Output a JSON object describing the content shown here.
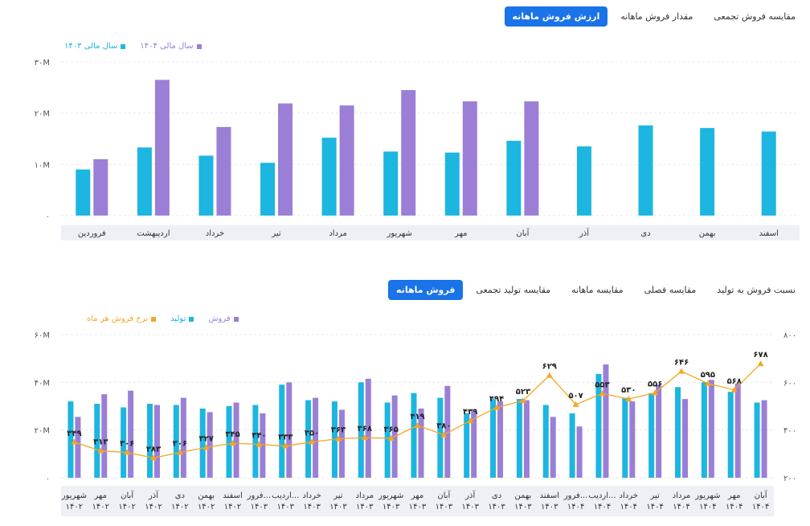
{
  "top_tabs": [
    "ارزش فروش ماهانه",
    "مقدار فروش ماهانه",
    "مقایسه فروش تجمعی"
  ],
  "bottom_tabs": [
    "فروش ماهانه",
    "مقایسه تولید تجمعی",
    "مقایسه ماهانه",
    "مقایسه فصلی",
    "نسبت فروش به تولید"
  ],
  "colors": {
    "cyan": "#1cb6e0",
    "purple": "#9b7fd6",
    "orange": "#f5a623",
    "accent": "#1a73e8"
  },
  "chart_data": [
    {
      "type": "bar",
      "categories": [
        "فروردین",
        "اردیبهشت",
        "خرداد",
        "تیر",
        "مرداد",
        "شهریور",
        "مهر",
        "آبان",
        "آذر",
        "دی",
        "بهمن",
        "اسفند"
      ],
      "series": [
        {
          "name": "سال مالی ۱۴۰۳",
          "color": "cyan",
          "values": [
            9,
            13.3,
            11.7,
            10.3,
            15.2,
            12.5,
            12.3,
            14.6,
            13.5,
            17.6,
            17.1,
            16.4
          ]
        },
        {
          "name": "سال مالی ۱۴۰۴",
          "color": "purple",
          "values": [
            11,
            26.5,
            17.3,
            21.9,
            21.5,
            24.5,
            22.3,
            22.3,
            null,
            null,
            null,
            null
          ]
        }
      ],
      "yticks": [
        "۰",
        "۱۰M",
        "۲۰M",
        "۳۰M"
      ],
      "ylim": [
        0,
        30
      ]
    },
    {
      "type": "bar",
      "categories": [
        "شهریور ۱۴۰۲",
        "مهر ۱۴۰۲",
        "آبان ۱۴۰۲",
        "آذر ۱۴۰۲",
        "دی ۱۴۰۲",
        "بهمن ۱۴۰۲",
        "اسفند ۱۴۰۲",
        "فرور... ۱۴۰۳",
        "اردیب... ۱۴۰۳",
        "خرداد ۱۴۰۳",
        "تیر ۱۴۰۳",
        "مرداد ۱۴۰۳",
        "شهریور ۱۴۰۳",
        "مهر ۱۴۰۳",
        "آبان ۱۴۰۳",
        "آذر ۱۴۰۳",
        "دی ۱۴۰۳",
        "بهمن ۱۴۰۳",
        "اسفند ۱۴۰۳",
        "فرور... ۱۴۰۴",
        "اردیب... ۱۴۰۴",
        "خرداد ۱۴۰۴",
        "تیر ۱۴۰۴",
        "مرداد ۱۴۰۴",
        "شهریور ۱۴۰۴",
        "مهر ۱۴۰۴",
        "آبان ۱۴۰۴"
      ],
      "series": [
        {
          "name": "تولید",
          "color": "cyan",
          "values": [
            32,
            31,
            29.5,
            31,
            30.5,
            29,
            30,
            30.5,
            39,
            32.5,
            32,
            40,
            31.5,
            35.5,
            33.5,
            27,
            33,
            33,
            30.5,
            27,
            43.5,
            33.5,
            35.5,
            38,
            40,
            36,
            31.5
          ]
        },
        {
          "name": "فروش",
          "color": "purple",
          "values": [
            25.5,
            35,
            36.5,
            30.5,
            33.5,
            27.5,
            31.5,
            27,
            40,
            33.5,
            28.5,
            41.5,
            34.5,
            29,
            38.5,
            28,
            32,
            32.5,
            25.5,
            21.5,
            47.5,
            32,
            39,
            33,
            41,
            39.5,
            32.5
          ]
        }
      ],
      "line": {
        "name": "نرخ فروش هر ماه",
        "color": "orange",
        "values": [
          349,
          313,
          306,
          283,
          306,
          327,
          345,
          340,
          333,
          350,
          363,
          368,
          365,
          419,
          380,
          439,
          494,
          523,
          629,
          507,
          553,
          530,
          556,
          646,
          595,
          568,
          678
        ],
        "labels": [
          "۳۴۹",
          "۳۱۳",
          "۳۰۶",
          "۲۸۳",
          "۳۰۶",
          "۳۲۷",
          "۳۴۵",
          "۳۴۰",
          "۳۳۳",
          "۳۵۰",
          "۳۶۳",
          "۳۶۸",
          "۳۶۵",
          "۴۱۹",
          "۳۸۰",
          "۴۳۹",
          "۴۹۴",
          "۵۲۳",
          "۶۲۹",
          "۵۰۷",
          "۵۵۳",
          "۵۳۰",
          "۵۵۶",
          "۶۴۶",
          "۵۹۵",
          "۵۶۸",
          "۶۷۸"
        ]
      },
      "yticks_left": [
        "۰",
        "۲۰M",
        "۴۰M",
        "۶۰M"
      ],
      "ylim_left": [
        0,
        60
      ],
      "yticks_right": [
        "۲۰۰",
        "۴۰۰",
        "۶۰۰",
        "۸۰۰"
      ],
      "ylim_right": [
        200,
        800
      ],
      "legend": [
        "فروش",
        "تولید",
        "نرخ فروش هر ماه"
      ]
    }
  ]
}
